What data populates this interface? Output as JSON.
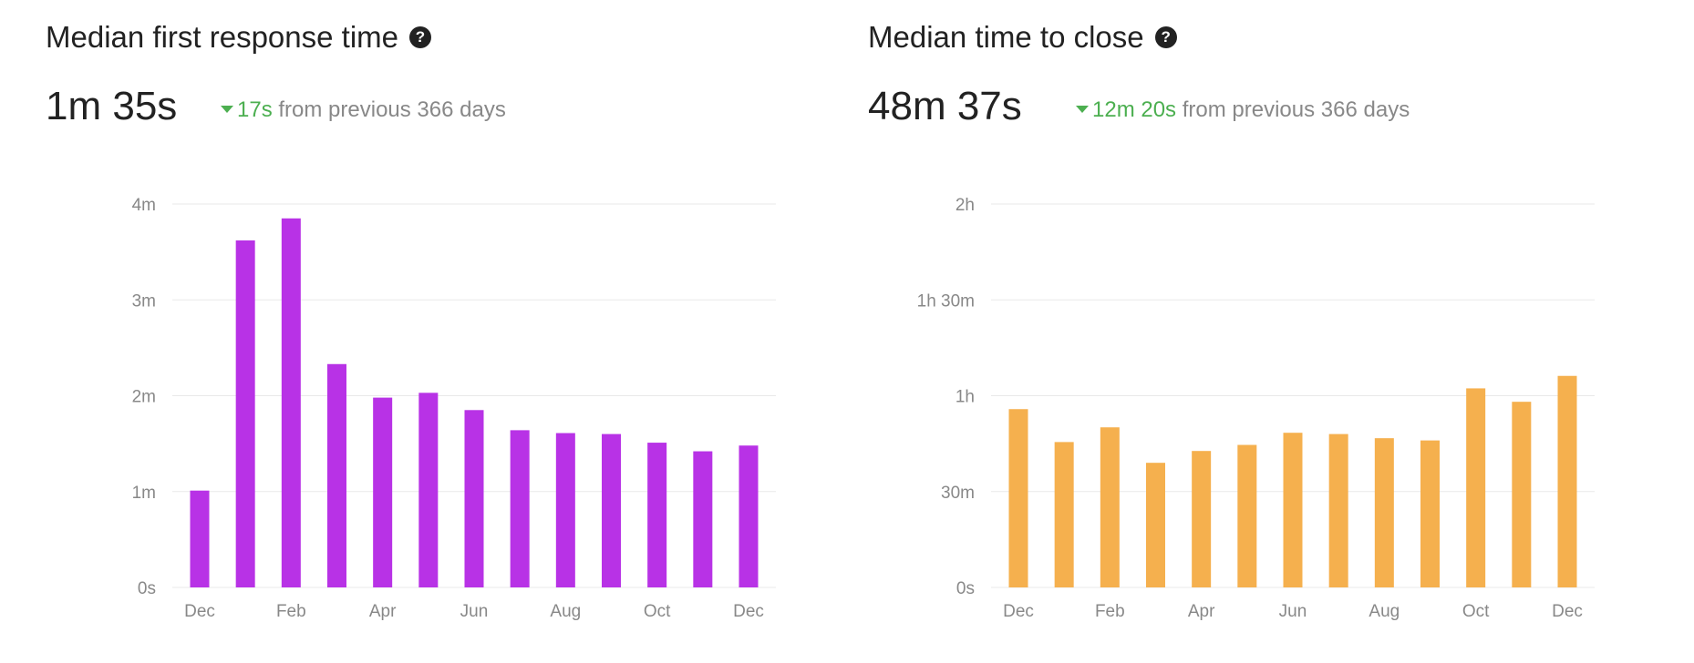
{
  "colors": {
    "left_bar": "#b832e6",
    "right_bar": "#f5b04e",
    "delta_good": "#4caf50",
    "grid": "#e9e9e9",
    "axis_text": "#888888"
  },
  "panels": [
    {
      "title": "Median first response time",
      "help_icon": "question-circle-icon",
      "value": "1m 35s",
      "delta_value": "17s",
      "delta_direction": "down",
      "delta_text": "from previous 366 days"
    },
    {
      "title": "Median time to close",
      "help_icon": "question-circle-icon",
      "value": "48m 37s",
      "delta_value": "12m 20s",
      "delta_direction": "down",
      "delta_text": "from previous 366 days"
    }
  ],
  "chart_data": [
    {
      "type": "bar",
      "categories": [
        "Dec",
        "Jan",
        "Feb",
        "Mar",
        "Apr",
        "May",
        "Jun",
        "Jul",
        "Aug",
        "Sep",
        "Oct",
        "Nov",
        "Dec"
      ],
      "x_tick_labels": [
        "Dec",
        "",
        "Feb",
        "",
        "Apr",
        "",
        "Jun",
        "",
        "Aug",
        "",
        "Oct",
        "",
        "Dec"
      ],
      "values": [
        1.01,
        3.62,
        3.85,
        2.33,
        1.98,
        2.03,
        1.85,
        1.64,
        1.61,
        1.6,
        1.51,
        1.42,
        1.48
      ],
      "unit": "minutes",
      "ylim": [
        0,
        4
      ],
      "y_ticks": [
        0,
        1,
        2,
        3,
        4
      ],
      "y_tick_labels": [
        "0s",
        "1m",
        "2m",
        "3m",
        "4m"
      ],
      "grid": true,
      "color": "#b832e6"
    },
    {
      "type": "bar",
      "categories": [
        "Dec",
        "Jan",
        "Feb",
        "Mar",
        "Apr",
        "May",
        "Jun",
        "Jul",
        "Aug",
        "Sep",
        "Oct",
        "Nov",
        "Dec"
      ],
      "x_tick_labels": [
        "Dec",
        "",
        "Feb",
        "",
        "Apr",
        "",
        "Jun",
        "",
        "Aug",
        "",
        "Oct",
        "",
        "Dec"
      ],
      "values": [
        55.8,
        45.5,
        50.1,
        39.0,
        42.7,
        44.6,
        48.4,
        48.0,
        46.7,
        46.0,
        62.3,
        58.1,
        66.2
      ],
      "unit": "minutes",
      "ylim": [
        0,
        120
      ],
      "y_ticks": [
        0,
        30,
        60,
        90,
        120
      ],
      "y_tick_labels": [
        "0s",
        "30m",
        "1h",
        "1h 30m",
        "2h"
      ],
      "grid": true,
      "color": "#f5b04e"
    }
  ]
}
